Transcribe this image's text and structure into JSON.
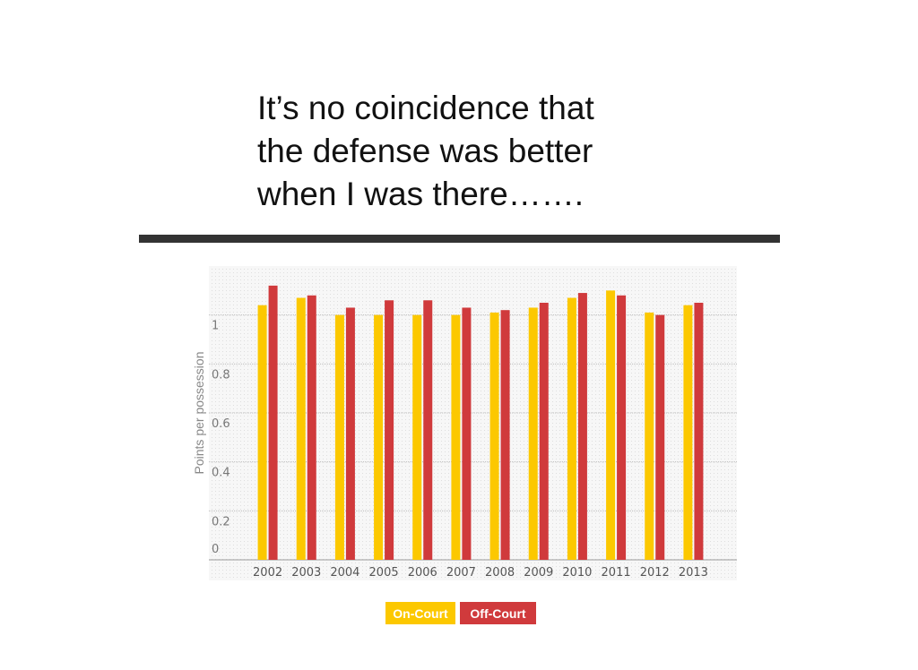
{
  "slide": {
    "heading_lines": [
      "It’s no coincidence that",
      "the defense was better",
      "when I was there……."
    ]
  },
  "chart_data": {
    "type": "bar",
    "categories": [
      "2002",
      "2003",
      "2004",
      "2005",
      "2006",
      "2007",
      "2008",
      "2009",
      "2010",
      "2011",
      "2012",
      "2013"
    ],
    "series": [
      {
        "name": "On-Court",
        "color": "#fcc800",
        "values": [
          1.04,
          1.07,
          1.0,
          1.0,
          1.0,
          1.0,
          1.01,
          1.03,
          1.07,
          1.1,
          1.01,
          1.04
        ]
      },
      {
        "name": "Off-Court",
        "color": "#d03a3c",
        "values": [
          1.12,
          1.08,
          1.03,
          1.06,
          1.06,
          1.03,
          1.02,
          1.05,
          1.09,
          1.08,
          1.0,
          1.05
        ]
      }
    ],
    "y_label": "Points per possession",
    "ylim": [
      0,
      1.2
    ],
    "yticks": [
      0,
      0.2,
      0.4,
      0.6,
      0.8,
      1
    ],
    "grid": true
  }
}
